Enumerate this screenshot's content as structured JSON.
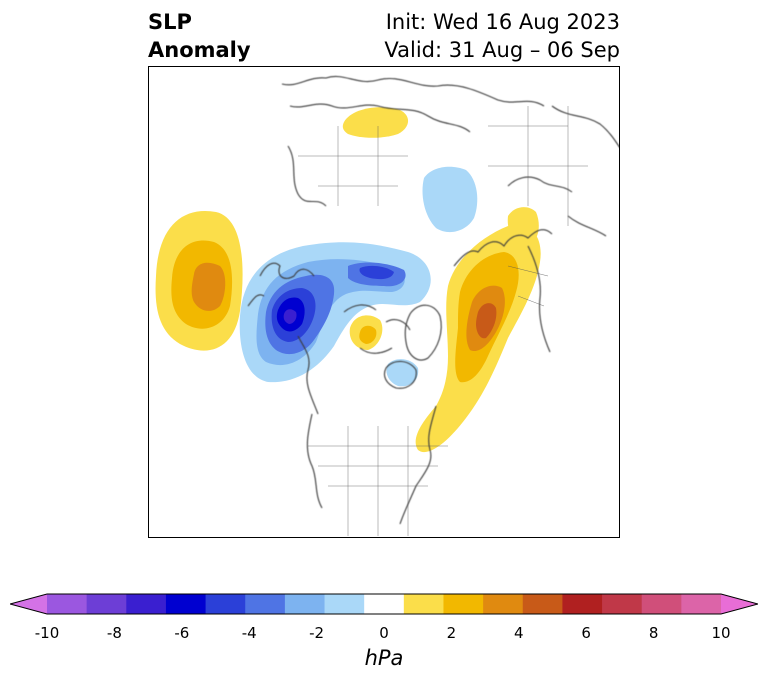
{
  "title": {
    "left_line1": "SLP",
    "left_line2": "Anomaly",
    "init": "Init: Wed 16 Aug 2023",
    "valid": "Valid: 31 Aug – 06 Sep"
  },
  "colorbar": {
    "unit": "hPa",
    "min": -10,
    "max": 10,
    "tick_labels": [
      "-10",
      "-8",
      "-6",
      "-4",
      "-2",
      "0",
      "2",
      "4",
      "6",
      "8",
      "10"
    ],
    "colors": [
      "#d472e6",
      "#9b57e0",
      "#6d3ed6",
      "#3a1fd0",
      "#0000d0",
      "#2b40d8",
      "#4f74e4",
      "#7db3f0",
      "#aad8f8",
      "#ffffff",
      "#fbde4a",
      "#f2b800",
      "#e08a10",
      "#c85a18",
      "#b02020",
      "#c03848",
      "#d04f7a",
      "#dc64a8",
      "#e86dd6"
    ],
    "extend": "both"
  },
  "map": {
    "projection": "north polar stereographic",
    "region": "Northern Hemisphere, North America at bottom",
    "features": [
      {
        "name": "positive anomaly, central North Pacific",
        "max_hPa": 4
      },
      {
        "name": "negative anomaly, eastern Siberia / Bering Sea",
        "min_hPa": -6
      },
      {
        "name": "negative anomaly, central Arctic Ocean",
        "min_hPa": -4
      },
      {
        "name": "positive anomaly, Canadian Arctic Archipelago",
        "max_hPa": 3
      },
      {
        "name": "positive anomaly, North Atlantic / NE North America",
        "max_hPa": 5
      },
      {
        "name": "positive anomaly, Scandinavia / northern Europe",
        "max_hPa": 2
      },
      {
        "name": "positive anomaly, North Africa",
        "max_hPa": 2
      },
      {
        "name": "negative anomaly, eastern Europe / Russia",
        "min_hPa": -2
      },
      {
        "name": "negative anomaly, Hudson Bay",
        "min_hPa": -2
      }
    ]
  }
}
